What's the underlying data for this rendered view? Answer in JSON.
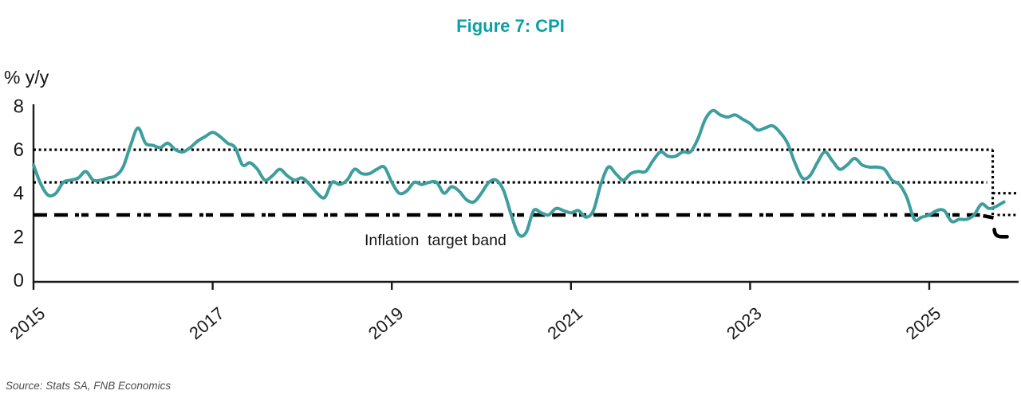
{
  "colors": {
    "title_teal": "#0d9fa6",
    "series_line_teal": "#3d9e9d",
    "axis_black": "#1a1a1a",
    "band_line_black": "#000000",
    "source_gray": "#4d4d4d"
  },
  "chart_data": {
    "type": "line",
    "title": "Figure 7: CPI",
    "unit_label": "% y/y",
    "source": "Source: Stats SA, FNB Economics",
    "y_axis": {
      "ticks": [
        8,
        6,
        4,
        2,
        0
      ],
      "range": [
        0,
        8
      ],
      "grid": false
    },
    "x_axis": {
      "ticks": [
        {
          "label": "2015",
          "month_index": 0
        },
        {
          "label": "2017",
          "month_index": 24
        },
        {
          "label": "2019",
          "month_index": 48
        },
        {
          "label": "2021",
          "month_index": 72
        },
        {
          "label": "2023",
          "month_index": 96
        },
        {
          "label": "2025",
          "month_index": 120
        }
      ]
    },
    "series": [
      {
        "name": "CPI % y/y",
        "start": "Dec 2014",
        "frequency": "monthly",
        "values": [
          5.3,
          4.4,
          3.9,
          4.0,
          4.5,
          4.6,
          4.7,
          5.0,
          4.6,
          4.6,
          4.7,
          4.8,
          5.2,
          6.2,
          7.0,
          6.3,
          6.2,
          6.1,
          6.3,
          6.0,
          5.9,
          6.1,
          6.4,
          6.6,
          6.8,
          6.6,
          6.3,
          6.1,
          5.3,
          5.4,
          5.1,
          4.6,
          4.8,
          5.1,
          4.8,
          4.6,
          4.7,
          4.4,
          4.0,
          3.8,
          4.5,
          4.4,
          4.6,
          5.1,
          4.9,
          4.9,
          5.1,
          5.2,
          4.5,
          4.0,
          4.1,
          4.5,
          4.4,
          4.5,
          4.5,
          4.0,
          4.3,
          4.1,
          3.7,
          3.6,
          4.0,
          4.5,
          4.6,
          4.1,
          3.0,
          2.1,
          2.2,
          3.2,
          3.1,
          3.0,
          3.3,
          3.2,
          3.1,
          3.2,
          2.9,
          3.2,
          4.4,
          5.2,
          4.9,
          4.6,
          4.9,
          5.0,
          5.0,
          5.5,
          5.9,
          5.7,
          5.7,
          5.9,
          5.9,
          6.5,
          7.4,
          7.8,
          7.6,
          7.5,
          7.6,
          7.4,
          7.2,
          6.9,
          7.0,
          7.1,
          6.8,
          6.3,
          5.4,
          4.7,
          4.8,
          5.4,
          5.9,
          5.5,
          5.1,
          5.3,
          5.6,
          5.3,
          5.2,
          5.2,
          5.1,
          4.6,
          4.4,
          3.8,
          2.8,
          2.9,
          3.0,
          3.2,
          3.2,
          2.7,
          2.8,
          2.8,
          3.0,
          3.5,
          3.3,
          3.4,
          3.6
        ]
      }
    ],
    "inflation_target_band": {
      "label": "Inflation  target band",
      "upper": 6,
      "midpoint": 4.5,
      "lower": 3,
      "new_upper": 4,
      "new_midpoint": 3,
      "new_lower": 2,
      "change_month_index": 128.5
    }
  }
}
